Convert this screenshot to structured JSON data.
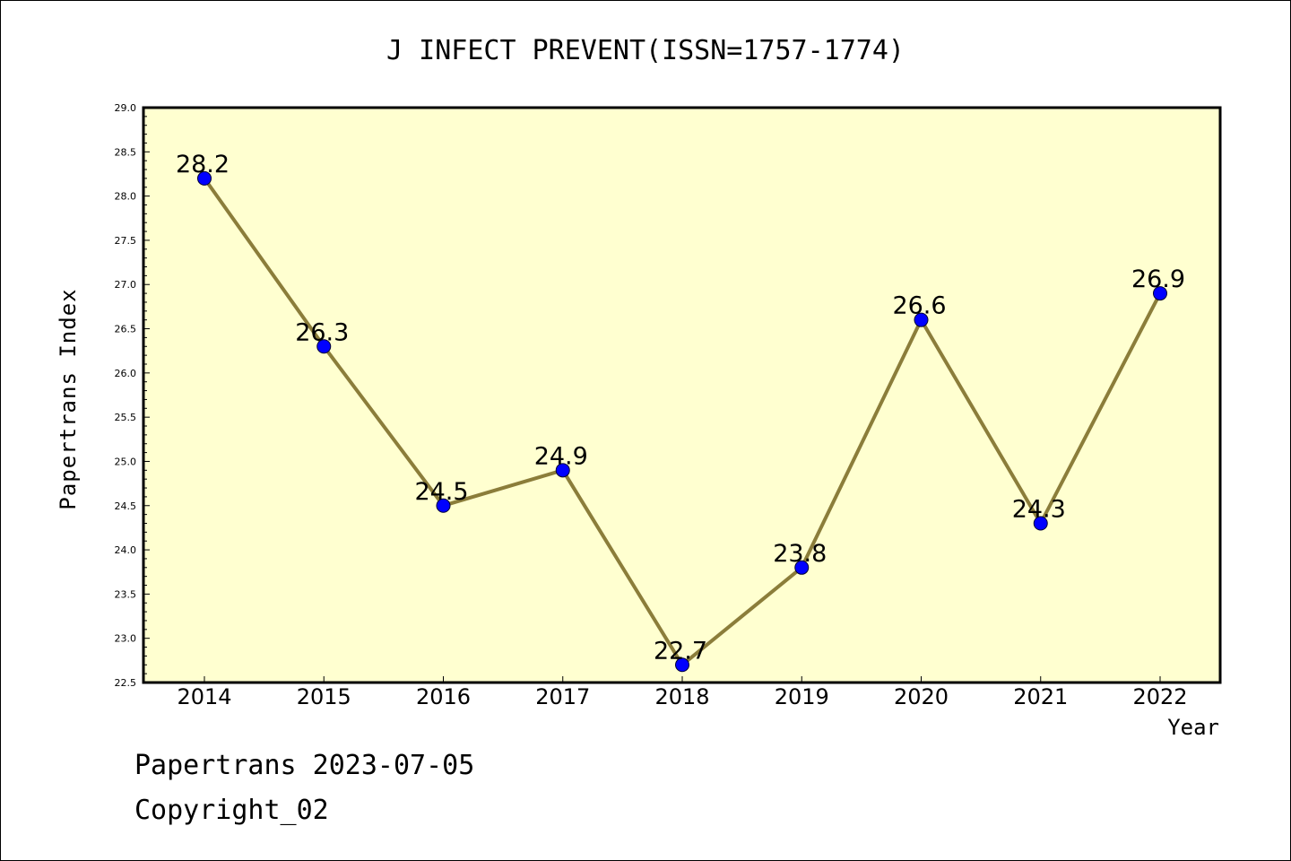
{
  "chart_data": {
    "type": "line",
    "title": "J INFECT PREVENT(ISSN=1757-1774)",
    "xlabel": "Year",
    "ylabel": "Papertrans Index",
    "categories": [
      "2014",
      "2015",
      "2016",
      "2017",
      "2018",
      "2019",
      "2020",
      "2021",
      "2022"
    ],
    "series": [
      {
        "values": [
          28.2,
          26.3,
          24.5,
          24.9,
          22.7,
          23.8,
          26.6,
          24.3,
          26.9
        ],
        "data_labels": [
          "28.2",
          "26.3",
          "24.5",
          "24.9",
          "22.7",
          "23.8",
          "26.6",
          "24.3",
          "26.9"
        ]
      }
    ],
    "ylim": [
      22.5,
      29.0
    ],
    "yticks": [
      "22.5",
      "23.0",
      "23.5",
      "24.0",
      "24.5",
      "25.0",
      "25.5",
      "26.0",
      "26.5",
      "27.0",
      "27.5",
      "28.0",
      "28.5",
      "29.0"
    ],
    "grid": false,
    "legend": "none",
    "colors": {
      "plot_background": "#ffffd0",
      "line": "#8b7d3a",
      "marker": "#0000ff",
      "axis": "#000000"
    }
  },
  "footer": {
    "line1": "Papertrans 2023-07-05",
    "line2": "Copyright_02"
  }
}
